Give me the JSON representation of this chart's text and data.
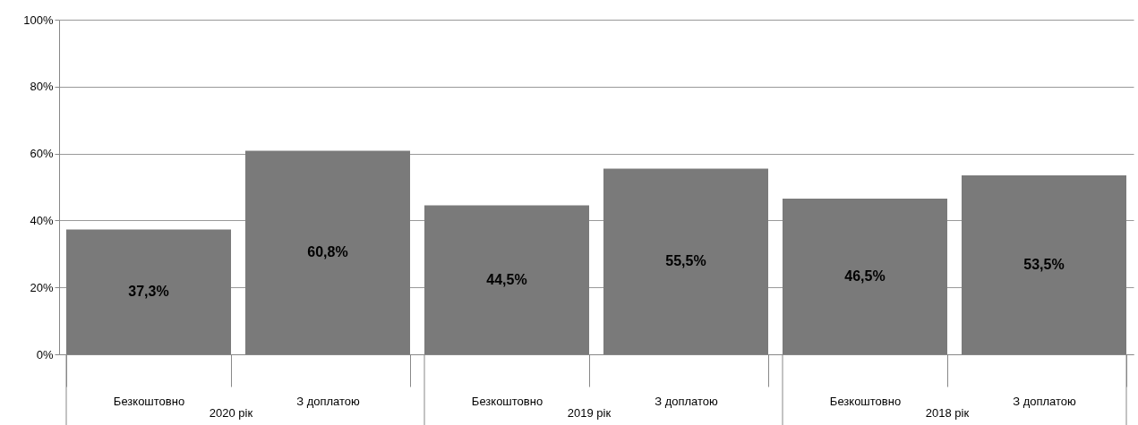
{
  "chart_data": {
    "type": "bar",
    "categories": [
      "Безкоштовно",
      "З доплатою",
      "Безкоштовно",
      "З доплатою",
      "Безкоштовно",
      "З доплатою"
    ],
    "values": [
      37.3,
      60.8,
      44.5,
      55.5,
      46.5,
      53.5
    ],
    "value_labels": [
      "37,3%",
      "60,8%",
      "44,5%",
      "55,5%",
      "46,5%",
      "53,5%"
    ],
    "color": "#7a7a7a",
    "ylim": [
      0,
      100
    ],
    "yticks": [
      {
        "value": 0,
        "label": "0%"
      },
      {
        "value": 20,
        "label": "20%"
      },
      {
        "value": 40,
        "label": "40%"
      },
      {
        "value": 60,
        "label": "60%"
      },
      {
        "value": 80,
        "label": "80%"
      },
      {
        "value": 100,
        "label": "100%"
      }
    ],
    "grid": "y",
    "annotations": [
      "2020 рік",
      "2019 рік",
      "2018 рік"
    ]
  }
}
